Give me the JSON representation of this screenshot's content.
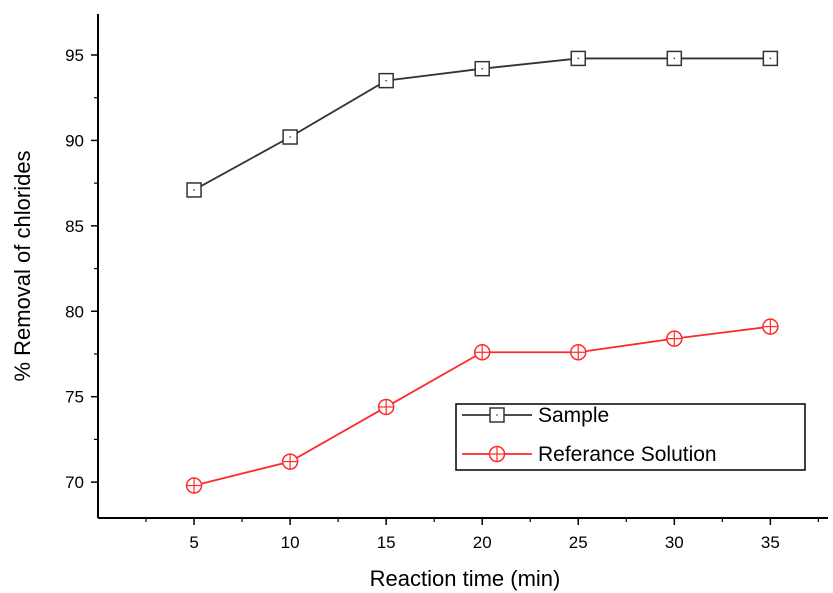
{
  "chart_data": {
    "type": "line",
    "xlabel": "Reaction time (min)",
    "ylabel": "% Removal of chlorides",
    "x": [
      5,
      10,
      15,
      20,
      25,
      30,
      35
    ],
    "xticks": [
      "5",
      "10",
      "15",
      "20",
      "25",
      "30",
      "35"
    ],
    "yticks": [
      "70",
      "75",
      "80",
      "85",
      "90",
      "95"
    ],
    "xlim": [
      0,
      38
    ],
    "ylim": [
      67.9,
      97.4
    ],
    "grid": false,
    "legend_position": "bottom-right",
    "series": [
      {
        "name": "Sample",
        "color": "#333333",
        "marker": "square",
        "values": [
          87.1,
          90.2,
          93.5,
          94.2,
          94.8,
          94.8,
          94.8
        ]
      },
      {
        "name": "Referance Solution",
        "color": "#ff2a2a",
        "marker": "circle-plus",
        "values": [
          69.8,
          71.2,
          74.4,
          77.6,
          77.6,
          78.4,
          79.1
        ]
      }
    ]
  }
}
